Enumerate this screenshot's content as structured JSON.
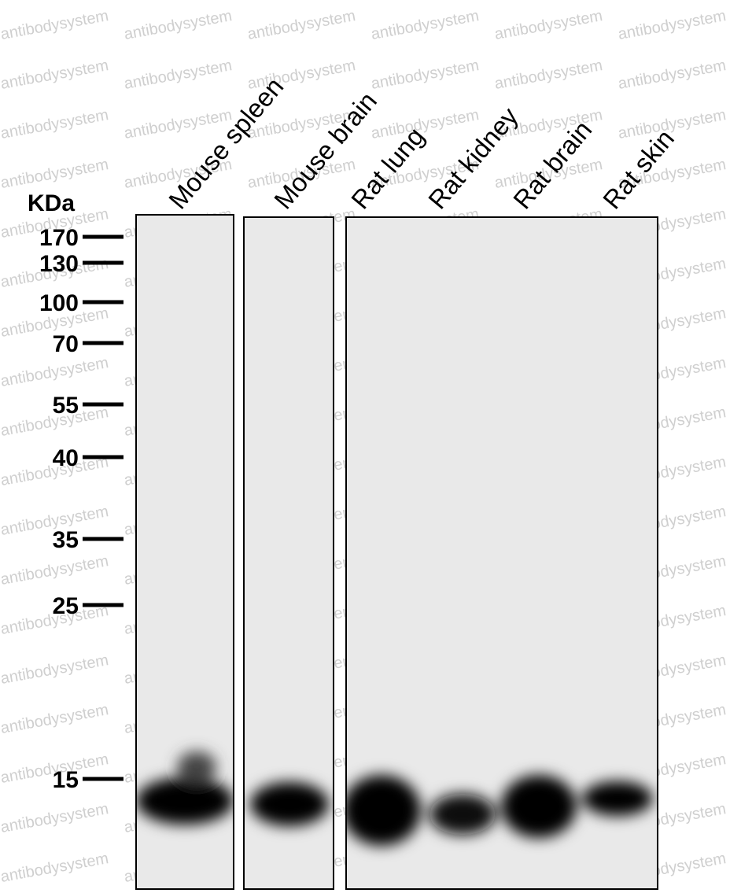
{
  "unit_label": "KDa",
  "markers": [
    "170",
    "130",
    "100",
    "70",
    "55",
    "40",
    "35",
    "25",
    "15"
  ],
  "lanes": [
    "Mouse spleen",
    "Mouse brain",
    "Rat lung",
    "Rat kidney",
    "Rat brain",
    "Rat skin"
  ],
  "watermark": "antibodysystem"
}
